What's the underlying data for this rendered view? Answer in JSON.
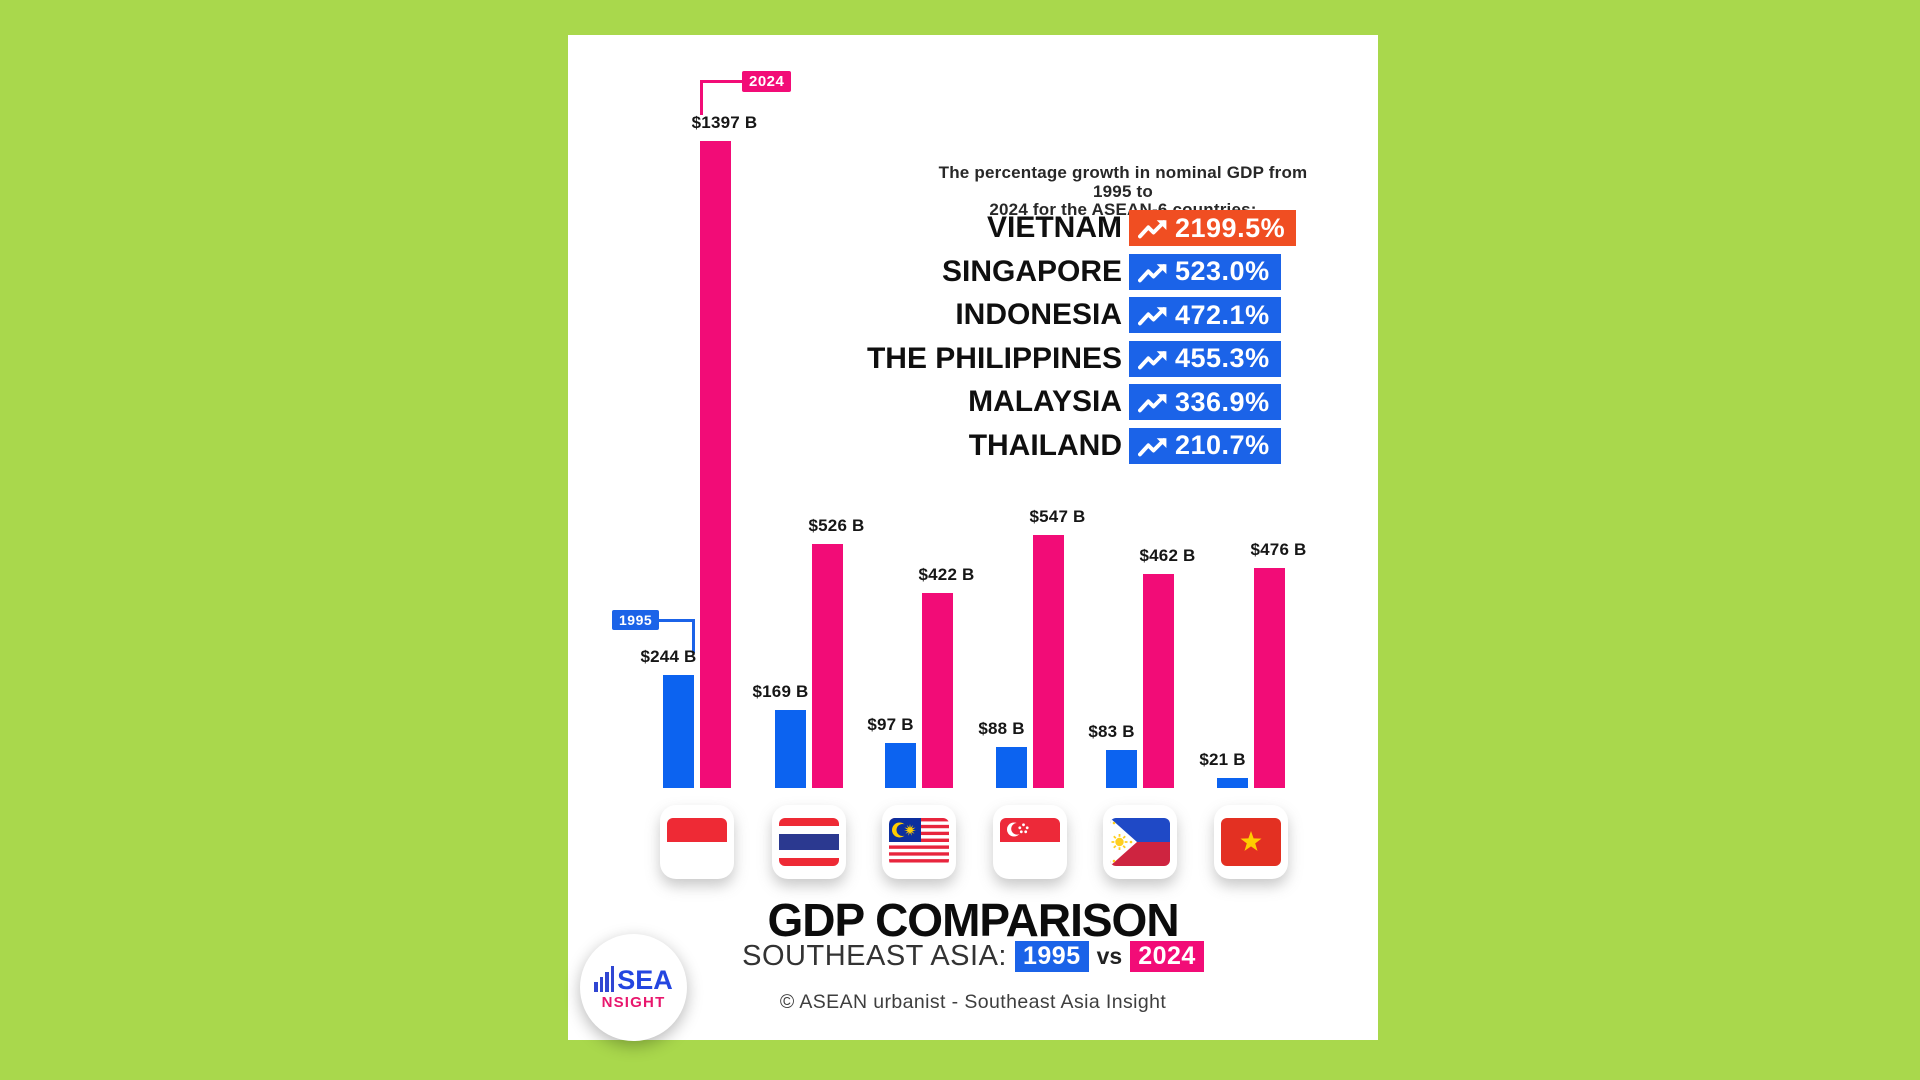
{
  "chart_data": {
    "type": "bar",
    "title": "GDP COMPARISON",
    "subtitle": "SOUTHEAST ASIA: 1995 vs 2024",
    "unit": "USD billions",
    "grid": false,
    "legend_position": "callouts-above-bars",
    "callout_1995": "1995",
    "callout_2024": "2024",
    "categories": [
      "Indonesia",
      "Thailand",
      "Malaysia",
      "Singapore",
      "The Philippines",
      "Vietnam"
    ],
    "series": [
      {
        "name": "1995",
        "color": "#0c63f0",
        "values": [
          244,
          169,
          97,
          88,
          83,
          21
        ],
        "labels": [
          "$244 B",
          "$169 B",
          "$97 B",
          "$88 B",
          "$83 B",
          "$21 B"
        ]
      },
      {
        "name": "2024",
        "color": "#f20c77",
        "values": [
          1397,
          526,
          422,
          547,
          462,
          476
        ],
        "labels": [
          "$1397 B",
          "$526 B",
          "$422 B",
          "$547 B",
          "$462 B",
          "$476 B"
        ]
      }
    ]
  },
  "growth": {
    "heading_line1": "The percentage growth in nominal GDP from 1995 to",
    "heading_line2": "2024 for the ASEAN-6 countries:",
    "rows": [
      {
        "country": "VIETNAM",
        "value": "2199.5%",
        "badge_color": "#f04e22"
      },
      {
        "country": "SINGAPORE",
        "value": "523.0%",
        "badge_color": "#1b63e8"
      },
      {
        "country": "INDONESIA",
        "value": "472.1%",
        "badge_color": "#1b63e8"
      },
      {
        "country": "THE PHILIPPINES",
        "value": "455.3%",
        "badge_color": "#1b63e8"
      },
      {
        "country": "MALAYSIA",
        "value": "336.9%",
        "badge_color": "#1b63e8"
      },
      {
        "country": "THAILAND",
        "value": "210.7%",
        "badge_color": "#1b63e8"
      }
    ]
  },
  "flags": [
    "indonesia",
    "thailand",
    "malaysia",
    "singapore",
    "philippines",
    "vietnam"
  ],
  "footer": {
    "title": "GDP COMPARISON",
    "subtitle_prefix": "SOUTHEAST ASIA:",
    "year_1995": "1995",
    "vs": "vs",
    "year_2024": "2024",
    "copyright": "© ASEAN urbanist - Southeast Asia Insight"
  },
  "logo": {
    "line1": "SEA",
    "line2": "NSIGHT"
  },
  "colors": {
    "background": "#a9d84c",
    "bar_1995": "#0c63f0",
    "bar_2024": "#f20c77",
    "badge_blue": "#1b63e8",
    "badge_orange": "#f04e22"
  }
}
